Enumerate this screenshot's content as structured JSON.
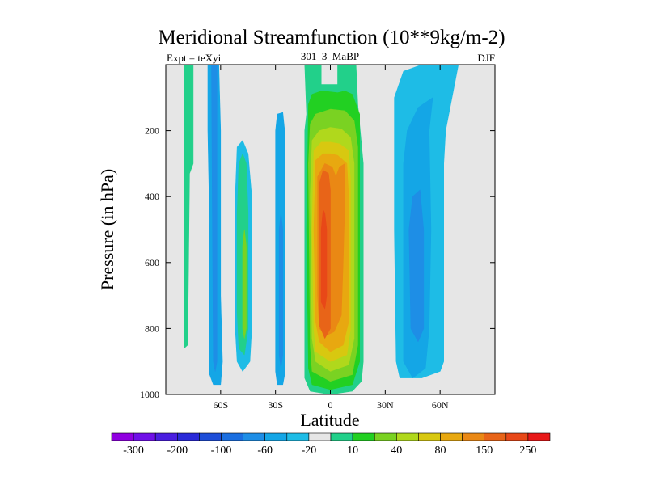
{
  "chart_data": {
    "type": "contour",
    "title": "Meridional Streamfunction (10**9kg/m-2)",
    "subtitle_left": "Expt = teXyi",
    "subtitle_center": "301_3_MaBP",
    "subtitle_right": "DJF",
    "xlabel": "Latitude",
    "ylabel": "Pressure (in hPa)",
    "xlim": [
      -90,
      90
    ],
    "ylim": [
      1000,
      0
    ],
    "y_reversed": true,
    "x_ticks": [
      {
        "value": -60,
        "label": "60S"
      },
      {
        "value": -30,
        "label": "30S"
      },
      {
        "value": 0,
        "label": "0"
      },
      {
        "value": 30,
        "label": "30N"
      },
      {
        "value": 60,
        "label": "60N"
      }
    ],
    "y_ticks": [
      {
        "value": 200,
        "label": "200"
      },
      {
        "value": 400,
        "label": "400"
      },
      {
        "value": 600,
        "label": "600"
      },
      {
        "value": 800,
        "label": "800"
      },
      {
        "value": 1000,
        "label": "1000"
      }
    ],
    "background_color": "#e6e6e6",
    "colorbar": {
      "boundaries": [
        -300,
        -250,
        -200,
        -150,
        -100,
        -80,
        -60,
        -40,
        -20,
        -10,
        10,
        20,
        40,
        60,
        80,
        100,
        150,
        200,
        250
      ],
      "labels": [
        {
          "after_index": 0,
          "label": "-300"
        },
        {
          "after_index": 2,
          "label": "-200"
        },
        {
          "after_index": 4,
          "label": "-100"
        },
        {
          "after_index": 6,
          "label": "-60"
        },
        {
          "after_index": 8,
          "label": "-20"
        },
        {
          "after_index": 10,
          "label": "10"
        },
        {
          "after_index": 12,
          "label": "40"
        },
        {
          "after_index": 14,
          "label": "80"
        },
        {
          "after_index": 16,
          "label": "150"
        },
        {
          "after_index": 18,
          "label": "250"
        }
      ],
      "colors": [
        "#9000e0",
        "#7010e8",
        "#4a1ee0",
        "#2a2ad8",
        "#1e4ed8",
        "#1a6ee0",
        "#1e8ee6",
        "#14a6e6",
        "#1ebce6",
        "#e6e6e6",
        "#22d08a",
        "#22d022",
        "#7ad222",
        "#b0d81c",
        "#d8c810",
        "#e8a810",
        "#ea8814",
        "#e86418",
        "#e84818",
        "#e81818"
      ]
    },
    "contour_regions": [
      {
        "name": "band-75S-outer",
        "color": "#22d08a",
        "points": [
          [
            -80,
            0
          ],
          [
            -75,
            0
          ],
          [
            -75,
            300
          ],
          [
            -77,
            330
          ],
          [
            -78,
            850
          ],
          [
            -80,
            860
          ]
        ]
      },
      {
        "name": "band-63S-outer",
        "color": "#14a6e6",
        "points": [
          [
            -67,
            0
          ],
          [
            -61,
            0
          ],
          [
            -60,
            200
          ],
          [
            -60,
            700
          ],
          [
            -59,
            900
          ],
          [
            -60,
            970
          ],
          [
            -64,
            970
          ],
          [
            -66,
            940
          ],
          [
            -66,
            500
          ],
          [
            -67,
            200
          ]
        ]
      },
      {
        "name": "band-63S-inner",
        "color": "#1e8ee6",
        "points": [
          [
            -65,
            0
          ],
          [
            -62,
            0
          ],
          [
            -62,
            900
          ],
          [
            -63,
            930
          ],
          [
            -64,
            900
          ],
          [
            -64.5,
            500
          ]
        ]
      },
      {
        "name": "band-48S-outer",
        "color": "#1ebce6",
        "points": [
          [
            -52,
            400
          ],
          [
            -51,
            250
          ],
          [
            -48,
            230
          ],
          [
            -45,
            270
          ],
          [
            -43,
            400
          ],
          [
            -43,
            800
          ],
          [
            -44,
            900
          ],
          [
            -48,
            930
          ],
          [
            -51,
            900
          ],
          [
            -52,
            800
          ]
        ]
      },
      {
        "name": "band-48S-inner",
        "color": "#22d08a",
        "points": [
          [
            -51,
            450
          ],
          [
            -50,
            300
          ],
          [
            -48,
            270
          ],
          [
            -46,
            300
          ],
          [
            -45,
            450
          ],
          [
            -45,
            800
          ],
          [
            -47,
            880
          ],
          [
            -50,
            860
          ],
          [
            -51,
            750
          ]
        ]
      },
      {
        "name": "band-46S-core",
        "color": "#7ad222",
        "points": [
          [
            -48,
            550
          ],
          [
            -47,
            500
          ],
          [
            -46,
            550
          ],
          [
            -46,
            800
          ],
          [
            -47,
            830
          ],
          [
            -48,
            800
          ]
        ]
      },
      {
        "name": "band-30S-outer",
        "color": "#14a6e6",
        "points": [
          [
            -30,
            200
          ],
          [
            -29,
            150
          ],
          [
            -26,
            145
          ],
          [
            -25,
            200
          ],
          [
            -25,
            940
          ],
          [
            -26,
            970
          ],
          [
            -29,
            970
          ],
          [
            -30,
            930
          ]
        ]
      },
      {
        "name": "band-30S-inner",
        "color": "#1e8ee6",
        "points": [
          [
            -28,
            500
          ],
          [
            -27,
            450
          ],
          [
            -26,
            500
          ],
          [
            -26,
            880
          ],
          [
            -27,
            920
          ],
          [
            -28,
            880
          ]
        ]
      },
      {
        "name": "band-50N-outer",
        "color": "#1ebce6",
        "points": [
          [
            35,
            100
          ],
          [
            40,
            20
          ],
          [
            50,
            0
          ],
          [
            70,
            0
          ],
          [
            63,
            200
          ],
          [
            62,
            300
          ],
          [
            62,
            900
          ],
          [
            60,
            930
          ],
          [
            50,
            950
          ],
          [
            38,
            950
          ],
          [
            36,
            900
          ],
          [
            35,
            500
          ]
        ]
      },
      {
        "name": "band-50N-inner",
        "color": "#14a6e6",
        "points": [
          [
            40,
            300
          ],
          [
            42,
            200
          ],
          [
            48,
            130
          ],
          [
            56,
            100
          ],
          [
            54,
            200
          ],
          [
            55,
            500
          ],
          [
            54,
            800
          ],
          [
            52,
            920
          ],
          [
            45,
            950
          ],
          [
            40,
            900
          ],
          [
            40,
            600
          ]
        ]
      },
      {
        "name": "band-50N-core",
        "color": "#1e8ee6",
        "points": [
          [
            43,
            500
          ],
          [
            45,
            400
          ],
          [
            49,
            380
          ],
          [
            51,
            500
          ],
          [
            51,
            800
          ],
          [
            48,
            840
          ],
          [
            44,
            800
          ]
        ]
      },
      {
        "name": "hadley-10",
        "color": "#22d08a",
        "points": [
          [
            -14,
            0
          ],
          [
            -13,
            150
          ],
          [
            -14,
            200
          ],
          [
            -14,
            950
          ],
          [
            -11,
            990
          ],
          [
            0,
            1000
          ],
          [
            12,
            990
          ],
          [
            17,
            960
          ],
          [
            18,
            900
          ],
          [
            18,
            300
          ],
          [
            15,
            120
          ],
          [
            14,
            0
          ],
          [
            5,
            0
          ],
          [
            4,
            0
          ],
          [
            4,
            60
          ],
          [
            -5,
            60
          ],
          [
            -5,
            0
          ]
        ]
      },
      {
        "name": "hadley-20",
        "color": "#22d022",
        "points": [
          [
            -12,
            120
          ],
          [
            -10,
            90
          ],
          [
            -5,
            80
          ],
          [
            -4,
            80
          ],
          [
            4,
            85
          ],
          [
            8,
            80
          ],
          [
            12,
            90
          ],
          [
            16,
            150
          ],
          [
            16,
            350
          ],
          [
            16,
            900
          ],
          [
            12,
            970
          ],
          [
            0,
            985
          ],
          [
            -10,
            970
          ],
          [
            -12,
            920
          ],
          [
            -13,
            500
          ]
        ]
      },
      {
        "name": "hadley-40",
        "color": "#7ad222",
        "points": [
          [
            -11,
            180
          ],
          [
            -8,
            150
          ],
          [
            0,
            135
          ],
          [
            8,
            140
          ],
          [
            13,
            170
          ],
          [
            15,
            250
          ],
          [
            15,
            850
          ],
          [
            12,
            940
          ],
          [
            0,
            960
          ],
          [
            -10,
            930
          ],
          [
            -11,
            850
          ],
          [
            -12,
            300
          ]
        ]
      },
      {
        "name": "hadley-60",
        "color": "#b0d81c",
        "points": [
          [
            -10,
            230
          ],
          [
            -6,
            200
          ],
          [
            0,
            190
          ],
          [
            6,
            195
          ],
          [
            11,
            220
          ],
          [
            13,
            300
          ],
          [
            13,
            830
          ],
          [
            10,
            910
          ],
          [
            0,
            930
          ],
          [
            -8,
            900
          ],
          [
            -10,
            830
          ],
          [
            -11,
            400
          ]
        ]
      },
      {
        "name": "hadley-80",
        "color": "#d8c810",
        "points": [
          [
            -9,
            260
          ],
          [
            -5,
            235
          ],
          [
            0,
            235
          ],
          [
            5,
            240
          ],
          [
            10,
            260
          ],
          [
            11,
            350
          ],
          [
            11,
            800
          ],
          [
            9,
            880
          ],
          [
            0,
            900
          ],
          [
            -8,
            870
          ],
          [
            -9,
            800
          ],
          [
            -10,
            500
          ]
        ]
      },
      {
        "name": "hadley-100",
        "color": "#e8a810",
        "points": [
          [
            -8,
            290
          ],
          [
            -4,
            270
          ],
          [
            0,
            270
          ],
          [
            4,
            275
          ],
          [
            9,
            300
          ],
          [
            10,
            400
          ],
          [
            10,
            780
          ],
          [
            7,
            850
          ],
          [
            0,
            870
          ],
          [
            -6,
            840
          ],
          [
            -8,
            780
          ],
          [
            -9,
            500
          ]
        ]
      },
      {
        "name": "hadley-150",
        "color": "#ea8814",
        "points": [
          [
            -7,
            340
          ],
          [
            -3,
            300
          ],
          [
            1,
            310
          ],
          [
            3,
            340
          ],
          [
            5,
            310
          ],
          [
            8,
            300
          ],
          [
            8,
            400
          ],
          [
            7,
            600
          ],
          [
            6,
            760
          ],
          [
            2,
            810
          ],
          [
            -2,
            820
          ],
          [
            -6,
            800
          ],
          [
            -7,
            700
          ],
          [
            -7,
            500
          ]
        ]
      },
      {
        "name": "hadley-200",
        "color": "#e86418",
        "points": [
          [
            -6,
            360
          ],
          [
            -4,
            320
          ],
          [
            -1,
            330
          ],
          [
            0,
            380
          ],
          [
            0,
            800
          ],
          [
            -3,
            830
          ],
          [
            -6,
            790
          ],
          [
            -6,
            600
          ]
        ]
      },
      {
        "name": "hadley-250",
        "color": "#e84818",
        "points": [
          [
            -5,
            500
          ],
          [
            -4,
            440
          ],
          [
            -3,
            450
          ],
          [
            -2,
            500
          ],
          [
            -2,
            700
          ],
          [
            -3,
            740
          ],
          [
            -5,
            720
          ]
        ]
      }
    ]
  }
}
